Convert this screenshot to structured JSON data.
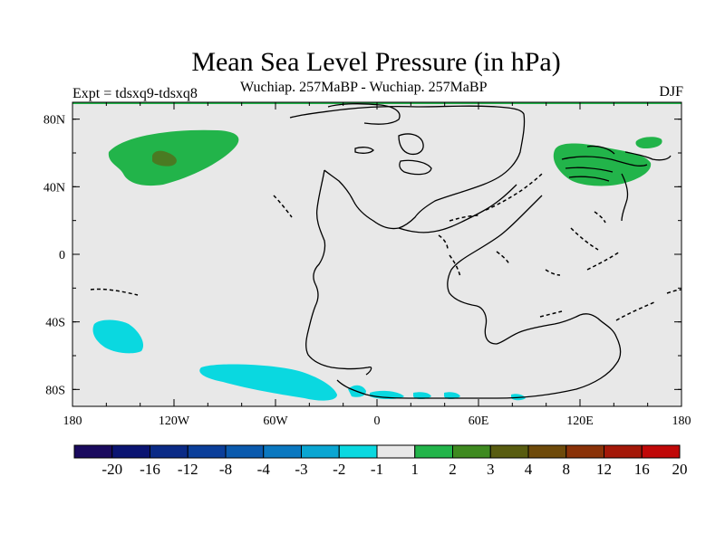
{
  "title": "Mean Sea Level Pressure (in hPa)",
  "subtitle": "Wuchiap. 257MaBP - Wuchiap. 257MaBP",
  "left_label": "Expt = tdsxq9-tdsxq8",
  "right_label": "DJF",
  "lat_ticks": [
    "80N",
    "40N",
    "0",
    "40S",
    "80S"
  ],
  "lon_ticks": [
    "180",
    "120W",
    "60W",
    "0",
    "60E",
    "120E",
    "180"
  ],
  "colorbar": {
    "labels": [
      "-20",
      "-16",
      "-12",
      "-8",
      "-4",
      "-3",
      "-2",
      "-1",
      "1",
      "2",
      "3",
      "4",
      "8",
      "12",
      "16",
      "20"
    ],
    "colors": [
      "#1a0a5e",
      "#0a1472",
      "#0a2a86",
      "#0a3e9a",
      "#0a5aae",
      "#0a78c0",
      "#0aa6d2",
      "#0ad8e0",
      "#e8e8e8",
      "#22b44a",
      "#3e8a20",
      "#585c10",
      "#6e4a0a",
      "#8a3208",
      "#a41808",
      "#c00808"
    ]
  },
  "map": {
    "background": "#e8e8e8",
    "regions": [
      {
        "name": "north-pacific-high",
        "value_range": "1 to 2",
        "color": "#22b44a"
      },
      {
        "name": "north-pacific-core",
        "value_range": "2 to 3",
        "color": "#3e8a20"
      },
      {
        "name": "east-asia-high",
        "value_range": "1 to 2",
        "color": "#22b44a"
      },
      {
        "name": "east-asia-small",
        "value_range": "1 to 2",
        "color": "#22b44a"
      },
      {
        "name": "south-pacific-low",
        "value_range": "-2 to -1",
        "color": "#0ad8e0"
      },
      {
        "name": "southern-ocean-low",
        "value_range": "-2 to -1",
        "color": "#0ad8e0"
      }
    ]
  }
}
